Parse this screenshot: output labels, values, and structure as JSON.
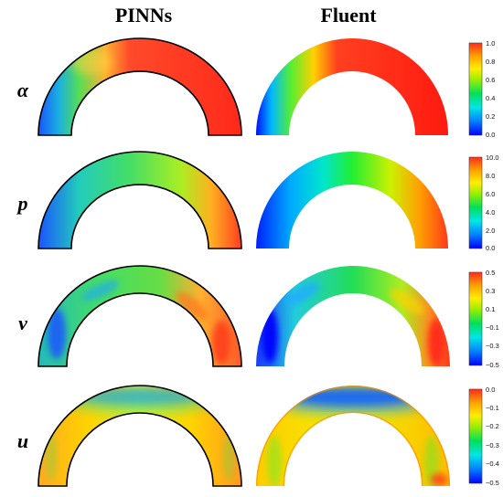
{
  "columns": [
    "PINNs",
    "Fluent"
  ],
  "rows": [
    {
      "label": "α",
      "ticks": [
        "1.0",
        "0.8",
        "0.6",
        "0.4",
        "0.2",
        "0.0"
      ]
    },
    {
      "label": "p",
      "ticks": [
        "10.0",
        "8.0",
        "6.0",
        "4.0",
        "2.0",
        "0.0"
      ]
    },
    {
      "label": "v",
      "ticks": [
        "0.5",
        "0.3",
        "0.1",
        "−0.1",
        "−0.3",
        "−0.5"
      ]
    },
    {
      "label": "u",
      "ticks": [
        "0.0",
        "−0.1",
        "−0.2",
        "−0.3",
        "−0.4",
        "−0.5"
      ]
    }
  ],
  "colors": {
    "colormap": [
      "#0000ff",
      "#0080ff",
      "#00e6e6",
      "#00e05a",
      "#99ee00",
      "#ffee00",
      "#ffa000",
      "#ff2a1a"
    ],
    "outline": "#000000"
  }
}
